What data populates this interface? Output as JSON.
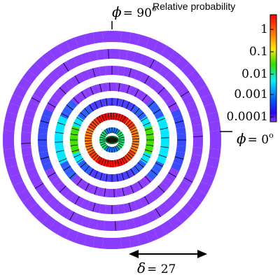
{
  "labels": {
    "phi_top": {
      "symbol": "ϕ",
      "eq": "= 90",
      "deg": "o"
    },
    "phi_right": {
      "symbol": "ϕ",
      "eq": "= 0",
      "deg": "o"
    },
    "delta": {
      "symbol": "δ",
      "eq": "= 27"
    }
  },
  "colorbar": {
    "title": "Relative probability",
    "ticks": [
      "1",
      "0.1",
      "0.01",
      "0.001",
      "0.0001"
    ],
    "colors": [
      "#ff0000",
      "#ff8000",
      "#ffff00",
      "#00ff00",
      "#00ffff",
      "#0080ff",
      "#0000ff",
      "#8000ff"
    ]
  },
  "rings": [
    {
      "color": "#8a3cff",
      "profile": "uniform"
    },
    {
      "color": "#8a3cff",
      "profile": "uniform"
    },
    {
      "color": "#8a3cff",
      "profile": "mostly-violet",
      "side": "#2a4bff"
    },
    {
      "color": "#8a3cff",
      "profile": "cyan-sides",
      "side": "#00e5ff"
    },
    {
      "color": "#4a3cff",
      "profile": "green-sides",
      "side": "#33e000"
    },
    {
      "color": "#ff7a00",
      "profile": "orange-red",
      "side": "#ff2a00"
    },
    {
      "color": "#00d8ff",
      "profile": "inner",
      "side": "#00ff66"
    }
  ],
  "center": {
    "color": "#0b6b1a",
    "fill": "#000000"
  }
}
